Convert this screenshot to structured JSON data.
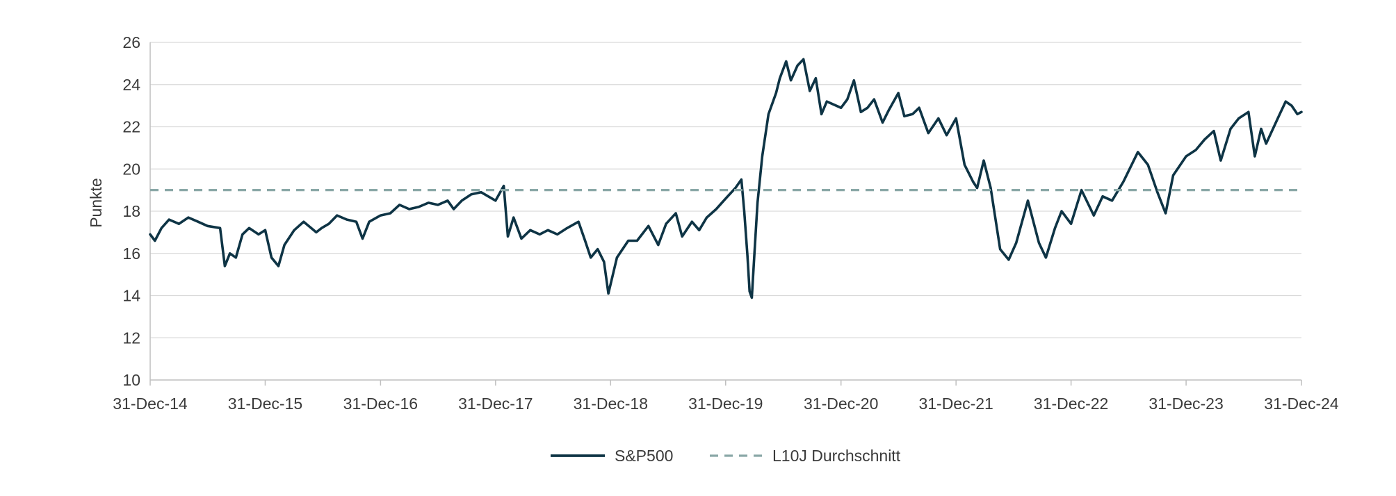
{
  "chart_data": {
    "type": "line",
    "title": "",
    "xlabel": "",
    "ylabel": "Punkte",
    "ylim": [
      10,
      26
    ],
    "yticks": [
      10,
      12,
      14,
      16,
      18,
      20,
      22,
      24,
      26
    ],
    "xlim": [
      "2014-12-31",
      "2024-12-31"
    ],
    "xticks": [
      {
        "date": "2014-12-31",
        "label": "31-Dec-14"
      },
      {
        "date": "2015-12-31",
        "label": "31-Dec-15"
      },
      {
        "date": "2016-12-31",
        "label": "31-Dec-16"
      },
      {
        "date": "2017-12-31",
        "label": "31-Dec-17"
      },
      {
        "date": "2018-12-31",
        "label": "31-Dec-18"
      },
      {
        "date": "2019-12-31",
        "label": "31-Dec-19"
      },
      {
        "date": "2020-12-31",
        "label": "31-Dec-20"
      },
      {
        "date": "2021-12-31",
        "label": "31-Dec-21"
      },
      {
        "date": "2022-12-31",
        "label": "31-Dec-22"
      },
      {
        "date": "2023-12-31",
        "label": "31-Dec-23"
      },
      {
        "date": "2024-12-31",
        "label": "31-Dec-24"
      }
    ],
    "grid": true,
    "legend_position": "bottom-center",
    "series": [
      {
        "name": "S&P500",
        "color": "#0e3445",
        "style": "solid",
        "points": [
          [
            "2014-12-31",
            16.9
          ],
          [
            "2015-01-15",
            16.6
          ],
          [
            "2015-02-05",
            17.2
          ],
          [
            "2015-03-01",
            17.6
          ],
          [
            "2015-04-01",
            17.4
          ],
          [
            "2015-05-01",
            17.7
          ],
          [
            "2015-06-01",
            17.5
          ],
          [
            "2015-07-01",
            17.3
          ],
          [
            "2015-08-10",
            17.2
          ],
          [
            "2015-08-25",
            15.4
          ],
          [
            "2015-09-10",
            16.0
          ],
          [
            "2015-09-29",
            15.8
          ],
          [
            "2015-10-20",
            16.9
          ],
          [
            "2015-11-10",
            17.2
          ],
          [
            "2015-12-10",
            16.9
          ],
          [
            "2015-12-31",
            17.1
          ],
          [
            "2016-01-20",
            15.8
          ],
          [
            "2016-02-11",
            15.4
          ],
          [
            "2016-03-01",
            16.4
          ],
          [
            "2016-04-01",
            17.1
          ],
          [
            "2016-05-01",
            17.5
          ],
          [
            "2016-06-10",
            17.0
          ],
          [
            "2016-06-27",
            17.2
          ],
          [
            "2016-07-20",
            17.4
          ],
          [
            "2016-08-15",
            17.8
          ],
          [
            "2016-09-15",
            17.6
          ],
          [
            "2016-10-15",
            17.5
          ],
          [
            "2016-11-04",
            16.7
          ],
          [
            "2016-11-25",
            17.5
          ],
          [
            "2016-12-31",
            17.8
          ],
          [
            "2017-01-31",
            17.9
          ],
          [
            "2017-03-01",
            18.3
          ],
          [
            "2017-04-01",
            18.1
          ],
          [
            "2017-05-01",
            18.2
          ],
          [
            "2017-06-01",
            18.4
          ],
          [
            "2017-07-01",
            18.3
          ],
          [
            "2017-08-01",
            18.5
          ],
          [
            "2017-08-20",
            18.1
          ],
          [
            "2017-09-15",
            18.5
          ],
          [
            "2017-10-15",
            18.8
          ],
          [
            "2017-11-15",
            18.9
          ],
          [
            "2017-12-31",
            18.5
          ],
          [
            "2018-01-26",
            19.2
          ],
          [
            "2018-02-08",
            16.8
          ],
          [
            "2018-02-26",
            17.7
          ],
          [
            "2018-03-23",
            16.7
          ],
          [
            "2018-04-20",
            17.1
          ],
          [
            "2018-05-20",
            16.9
          ],
          [
            "2018-06-15",
            17.1
          ],
          [
            "2018-07-15",
            16.9
          ],
          [
            "2018-08-15",
            17.2
          ],
          [
            "2018-09-20",
            17.5
          ],
          [
            "2018-10-11",
            16.6
          ],
          [
            "2018-10-29",
            15.8
          ],
          [
            "2018-11-20",
            16.2
          ],
          [
            "2018-12-10",
            15.6
          ],
          [
            "2018-12-24",
            14.1
          ],
          [
            "2019-01-20",
            15.8
          ],
          [
            "2019-02-25",
            16.6
          ],
          [
            "2019-03-25",
            16.6
          ],
          [
            "2019-04-30",
            17.3
          ],
          [
            "2019-05-31",
            16.4
          ],
          [
            "2019-06-25",
            17.4
          ],
          [
            "2019-07-26",
            17.9
          ],
          [
            "2019-08-15",
            16.8
          ],
          [
            "2019-09-15",
            17.5
          ],
          [
            "2019-10-08",
            17.1
          ],
          [
            "2019-11-01",
            17.7
          ],
          [
            "2019-12-01",
            18.1
          ],
          [
            "2019-12-31",
            18.6
          ],
          [
            "2020-01-31",
            19.1
          ],
          [
            "2020-02-19",
            19.5
          ],
          [
            "2020-02-28",
            18.0
          ],
          [
            "2020-03-09",
            15.9
          ],
          [
            "2020-03-16",
            14.2
          ],
          [
            "2020-03-23",
            13.9
          ],
          [
            "2020-03-31",
            15.9
          ],
          [
            "2020-04-10",
            18.4
          ],
          [
            "2020-04-25",
            20.6
          ],
          [
            "2020-05-15",
            22.6
          ],
          [
            "2020-06-08",
            23.6
          ],
          [
            "2020-06-20",
            24.3
          ],
          [
            "2020-07-10",
            25.1
          ],
          [
            "2020-07-25",
            24.2
          ],
          [
            "2020-08-15",
            24.9
          ],
          [
            "2020-09-03",
            25.2
          ],
          [
            "2020-09-23",
            23.7
          ],
          [
            "2020-10-12",
            24.3
          ],
          [
            "2020-10-30",
            22.6
          ],
          [
            "2020-11-16",
            23.2
          ],
          [
            "2020-12-31",
            22.9
          ],
          [
            "2021-01-20",
            23.3
          ],
          [
            "2021-02-10",
            24.2
          ],
          [
            "2021-03-04",
            22.7
          ],
          [
            "2021-03-25",
            22.9
          ],
          [
            "2021-04-15",
            23.3
          ],
          [
            "2021-05-12",
            22.2
          ],
          [
            "2021-06-01",
            22.8
          ],
          [
            "2021-07-01",
            23.6
          ],
          [
            "2021-07-20",
            22.5
          ],
          [
            "2021-08-15",
            22.6
          ],
          [
            "2021-09-05",
            22.9
          ],
          [
            "2021-10-04",
            21.7
          ],
          [
            "2021-11-05",
            22.4
          ],
          [
            "2021-12-01",
            21.6
          ],
          [
            "2021-12-31",
            22.4
          ],
          [
            "2022-01-27",
            20.2
          ],
          [
            "2022-02-23",
            19.4
          ],
          [
            "2022-03-08",
            19.1
          ],
          [
            "2022-03-29",
            20.4
          ],
          [
            "2022-04-20",
            19.1
          ],
          [
            "2022-05-20",
            16.2
          ],
          [
            "2022-06-16",
            15.7
          ],
          [
            "2022-07-10",
            16.5
          ],
          [
            "2022-08-16",
            18.5
          ],
          [
            "2022-09-20",
            16.5
          ],
          [
            "2022-10-12",
            15.8
          ],
          [
            "2022-11-10",
            17.2
          ],
          [
            "2022-12-01",
            18.0
          ],
          [
            "2022-12-31",
            17.4
          ],
          [
            "2023-02-02",
            19.0
          ],
          [
            "2023-03-13",
            17.8
          ],
          [
            "2023-04-10",
            18.7
          ],
          [
            "2023-05-10",
            18.5
          ],
          [
            "2023-06-15",
            19.4
          ],
          [
            "2023-07-31",
            20.8
          ],
          [
            "2023-09-01",
            20.2
          ],
          [
            "2023-10-01",
            18.9
          ],
          [
            "2023-10-27",
            17.9
          ],
          [
            "2023-11-20",
            19.7
          ],
          [
            "2023-12-31",
            20.6
          ],
          [
            "2024-01-31",
            20.9
          ],
          [
            "2024-02-28",
            21.4
          ],
          [
            "2024-03-28",
            21.8
          ],
          [
            "2024-04-19",
            20.4
          ],
          [
            "2024-05-20",
            21.9
          ],
          [
            "2024-06-15",
            22.4
          ],
          [
            "2024-07-16",
            22.7
          ],
          [
            "2024-08-05",
            20.6
          ],
          [
            "2024-08-25",
            21.9
          ],
          [
            "2024-09-10",
            21.2
          ],
          [
            "2024-10-20",
            22.5
          ],
          [
            "2024-11-11",
            23.2
          ],
          [
            "2024-11-30",
            23.0
          ],
          [
            "2024-12-18",
            22.6
          ],
          [
            "2024-12-31",
            22.7
          ]
        ]
      },
      {
        "name": "L10J Durchschnitt",
        "color": "#8aa8a7",
        "style": "dashed",
        "points": [
          [
            "2014-12-31",
            19.0
          ],
          [
            "2024-12-31",
            19.0
          ]
        ]
      }
    ]
  }
}
